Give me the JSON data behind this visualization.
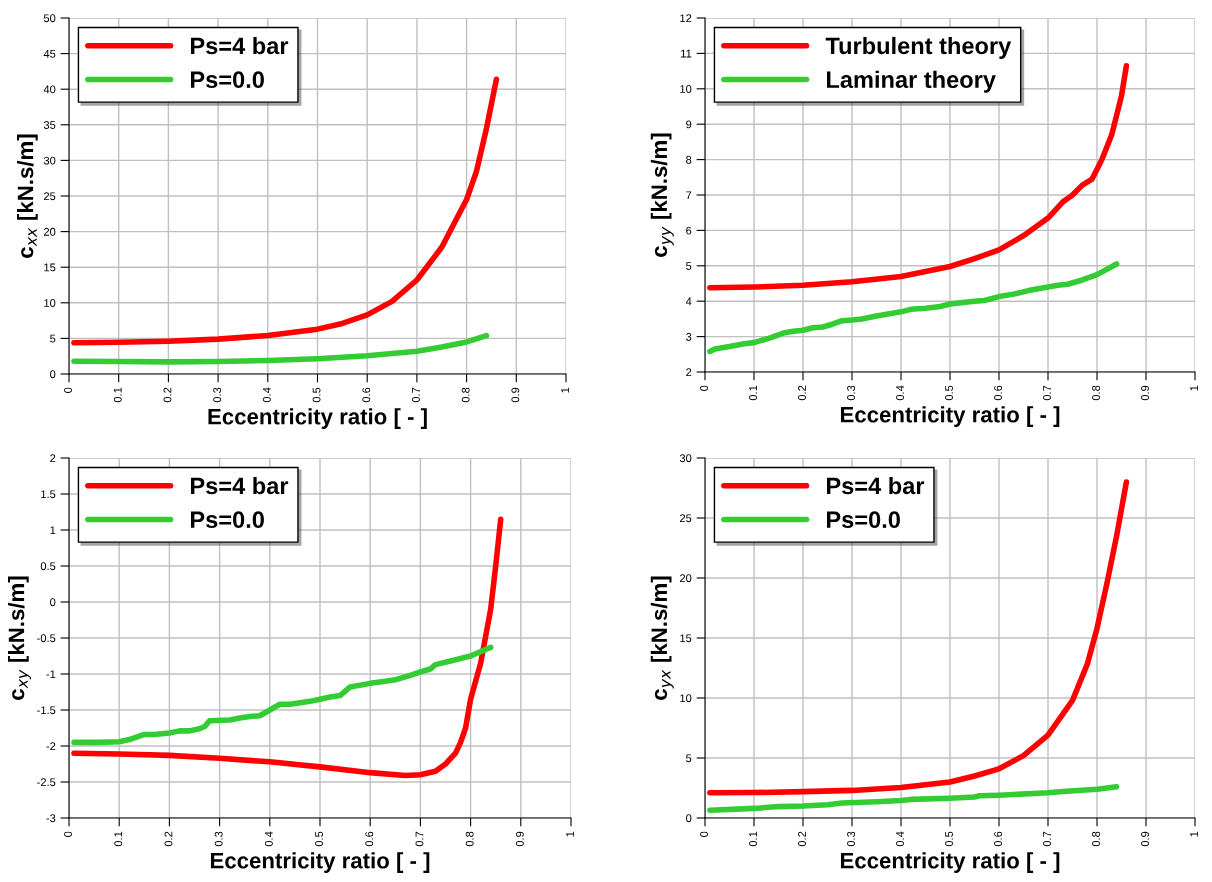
{
  "chart_data": [
    {
      "type": "line",
      "xlabel": "Eccentricity ratio [ - ]",
      "ylabel": "c$_{xx}$ [kN.s/m]",
      "xlim": [
        0,
        1
      ],
      "xticks": [
        0,
        0.1,
        0.2,
        0.3,
        0.4,
        0.5,
        0.6,
        0.7,
        0.8,
        0.9,
        1
      ],
      "ylim": [
        0,
        50
      ],
      "yticks": [
        0,
        5,
        10,
        15,
        20,
        25,
        30,
        35,
        40,
        45,
        50
      ],
      "grid": true,
      "legend": "top left",
      "marker": "none",
      "line_style": "solid",
      "series": [
        {
          "name": "Ps=4 bar",
          "color": "#ff0000",
          "x": [
            0.01,
            0.1,
            0.2,
            0.3,
            0.4,
            0.5,
            0.55,
            0.6,
            0.65,
            0.7,
            0.75,
            0.8,
            0.82,
            0.84,
            0.86
          ],
          "values": [
            4.4,
            4.45,
            4.6,
            4.9,
            5.4,
            6.3,
            7.1,
            8.3,
            10.2,
            13.2,
            17.8,
            24.5,
            28.5,
            34.5,
            41.4
          ]
        },
        {
          "name": "Ps=0.0",
          "color": "#33cc33",
          "x": [
            0.01,
            0.1,
            0.2,
            0.3,
            0.4,
            0.5,
            0.6,
            0.7,
            0.75,
            0.8,
            0.84
          ],
          "values": [
            1.8,
            1.75,
            1.7,
            1.75,
            1.9,
            2.15,
            2.55,
            3.2,
            3.8,
            4.5,
            5.4
          ]
        }
      ]
    },
    {
      "type": "line",
      "xlabel": "Eccentricity ratio [ - ]",
      "ylabel": "c$_{yy}$ [kN.s/m]",
      "xlim": [
        0,
        1
      ],
      "xticks": [
        0,
        0.1,
        0.2,
        0.3,
        0.4,
        0.5,
        0.6,
        0.7,
        0.8,
        0.9,
        1
      ],
      "ylim": [
        2,
        12
      ],
      "yticks": [
        2,
        3,
        4,
        5,
        6,
        7,
        8,
        9,
        10,
        11,
        12
      ],
      "grid": true,
      "legend": "top left",
      "marker": "none",
      "line_style": "solid",
      "series": [
        {
          "name": "Turbulent theory",
          "color": "#ff0000",
          "x": [
            0.01,
            0.1,
            0.2,
            0.3,
            0.4,
            0.5,
            0.55,
            0.6,
            0.65,
            0.7,
            0.73,
            0.75,
            0.77,
            0.79,
            0.81,
            0.83,
            0.85,
            0.86
          ],
          "values": [
            4.38,
            4.4,
            4.45,
            4.55,
            4.7,
            4.98,
            5.2,
            5.45,
            5.85,
            6.35,
            6.8,
            7.0,
            7.28,
            7.45,
            8.0,
            8.7,
            9.8,
            10.65
          ]
        },
        {
          "name": "Laminar theory",
          "color": "#33cc33",
          "x": [
            0.01,
            0.02,
            0.05,
            0.08,
            0.1,
            0.13,
            0.16,
            0.18,
            0.2,
            0.22,
            0.24,
            0.26,
            0.28,
            0.3,
            0.32,
            0.35,
            0.4,
            0.42,
            0.45,
            0.48,
            0.5,
            0.55,
            0.57,
            0.6,
            0.63,
            0.66,
            0.7,
            0.72,
            0.74,
            0.77,
            0.8,
            0.84
          ],
          "values": [
            2.58,
            2.65,
            2.72,
            2.8,
            2.83,
            2.95,
            3.1,
            3.15,
            3.18,
            3.25,
            3.27,
            3.35,
            3.45,
            3.47,
            3.5,
            3.58,
            3.7,
            3.77,
            3.8,
            3.85,
            3.92,
            4.0,
            4.02,
            4.13,
            4.2,
            4.3,
            4.4,
            4.45,
            4.48,
            4.6,
            4.75,
            5.05
          ]
        }
      ]
    },
    {
      "type": "line",
      "xlabel": "Eccentricity ratio [ - ]",
      "ylabel": "c$_{xy}$ [kN.s/m]",
      "xlim": [
        0,
        1
      ],
      "xticks": [
        0,
        0.1,
        0.2,
        0.3,
        0.4,
        0.5,
        0.6,
        0.7,
        0.8,
        0.9,
        1
      ],
      "ylim": [
        -3,
        2
      ],
      "yticks": [
        -3,
        -2.5,
        -2,
        -1.5,
        -1,
        -0.5,
        0,
        0.5,
        1,
        1.5,
        2
      ],
      "grid": true,
      "legend": "top left",
      "marker": "none",
      "line_style": "solid",
      "series": [
        {
          "name": "Ps=4 bar",
          "color": "#ff0000",
          "x": [
            0.01,
            0.1,
            0.2,
            0.3,
            0.4,
            0.5,
            0.6,
            0.67,
            0.7,
            0.73,
            0.75,
            0.77,
            0.78,
            0.79,
            0.8,
            0.82,
            0.84,
            0.85,
            0.86
          ],
          "values": [
            -2.1,
            -2.11,
            -2.13,
            -2.17,
            -2.22,
            -2.29,
            -2.37,
            -2.41,
            -2.4,
            -2.35,
            -2.25,
            -2.1,
            -1.95,
            -1.75,
            -1.35,
            -0.85,
            -0.1,
            0.5,
            1.15
          ]
        },
        {
          "name": "Ps=0.0",
          "color": "#33cc33",
          "x": [
            0.01,
            0.06,
            0.1,
            0.12,
            0.15,
            0.17,
            0.2,
            0.22,
            0.24,
            0.26,
            0.27,
            0.28,
            0.32,
            0.34,
            0.36,
            0.38,
            0.42,
            0.44,
            0.48,
            0.5,
            0.52,
            0.54,
            0.56,
            0.6,
            0.63,
            0.65,
            0.68,
            0.7,
            0.72,
            0.73,
            0.76,
            0.8,
            0.84
          ],
          "values": [
            -1.95,
            -1.95,
            -1.94,
            -1.91,
            -1.84,
            -1.84,
            -1.82,
            -1.79,
            -1.79,
            -1.76,
            -1.73,
            -1.65,
            -1.64,
            -1.61,
            -1.59,
            -1.58,
            -1.42,
            -1.42,
            -1.38,
            -1.35,
            -1.32,
            -1.3,
            -1.18,
            -1.13,
            -1.1,
            -1.08,
            -1.02,
            -0.97,
            -0.93,
            -0.87,
            -0.82,
            -0.75,
            -0.63
          ]
        }
      ]
    },
    {
      "type": "line",
      "xlabel": "Eccentricity ratio [ - ]",
      "ylabel": "c$_{yx}$ [kN.s/m]",
      "xlim": [
        0,
        1
      ],
      "xticks": [
        0,
        0.1,
        0.2,
        0.3,
        0.4,
        0.5,
        0.6,
        0.7,
        0.8,
        0.9,
        1
      ],
      "ylim": [
        0,
        30
      ],
      "yticks": [
        0,
        5,
        10,
        15,
        20,
        25,
        30
      ],
      "grid": true,
      "legend": "top left",
      "marker": "none",
      "line_style": "solid",
      "series": [
        {
          "name": "Ps=4 bar",
          "color": "#ff0000",
          "x": [
            0.01,
            0.1,
            0.2,
            0.3,
            0.4,
            0.5,
            0.55,
            0.6,
            0.65,
            0.7,
            0.75,
            0.78,
            0.8,
            0.82,
            0.84,
            0.86
          ],
          "values": [
            2.1,
            2.12,
            2.2,
            2.3,
            2.55,
            3.0,
            3.5,
            4.1,
            5.2,
            6.9,
            9.8,
            12.8,
            15.8,
            19.5,
            23.5,
            28.0
          ]
        },
        {
          "name": "Ps=0.0",
          "color": "#33cc33",
          "x": [
            0.01,
            0.1,
            0.15,
            0.2,
            0.25,
            0.28,
            0.35,
            0.4,
            0.42,
            0.5,
            0.55,
            0.56,
            0.6,
            0.7,
            0.73,
            0.8,
            0.84
          ],
          "values": [
            0.65,
            0.8,
            0.95,
            1.0,
            1.1,
            1.25,
            1.35,
            1.45,
            1.55,
            1.65,
            1.75,
            1.85,
            1.9,
            2.1,
            2.2,
            2.4,
            2.6
          ]
        }
      ]
    }
  ]
}
